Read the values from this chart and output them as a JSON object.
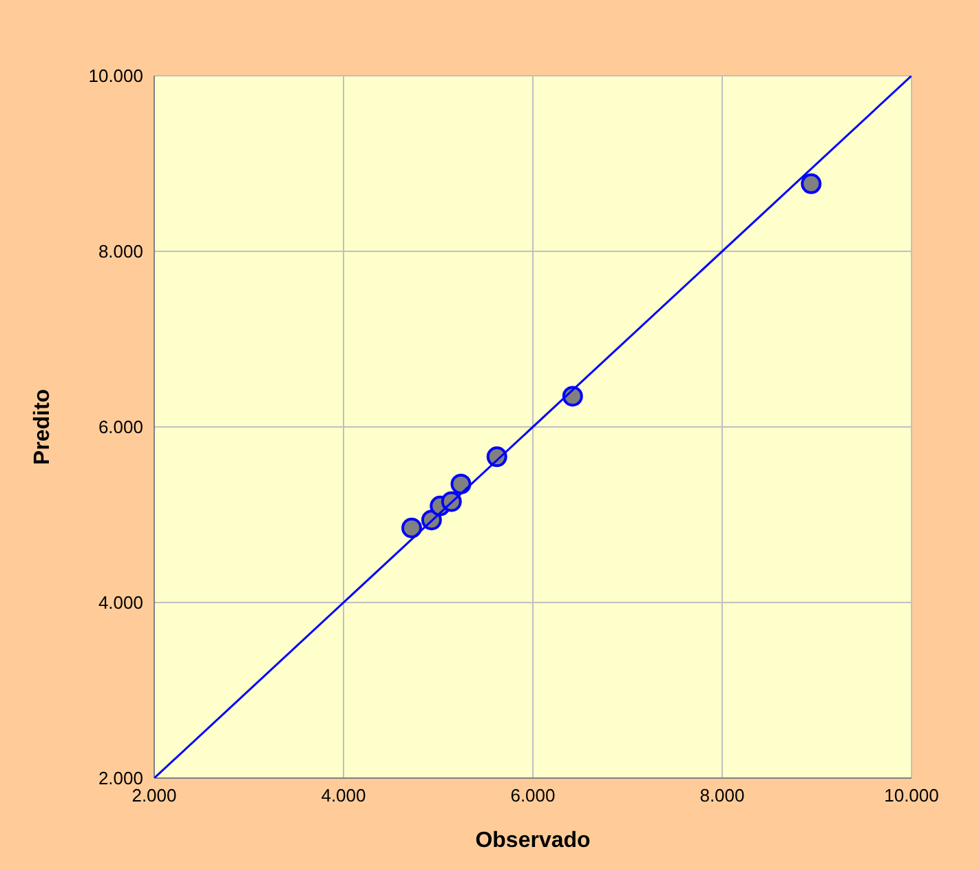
{
  "chart_data": {
    "type": "scatter",
    "xlabel": "Observado",
    "ylabel": "Predito",
    "series": [
      {
        "color": "#808080",
        "x": [
          4720,
          4930,
          5020,
          5140,
          5240,
          5620,
          6420,
          8940
        ],
        "values": [
          4850,
          4940,
          5100,
          5150,
          5350,
          5660,
          6350,
          8770
        ]
      },
      {
        "type": "line",
        "marker": "none",
        "color": "#0000ff",
        "x": [
          2000,
          10000
        ],
        "values": [
          2000,
          10000
        ]
      }
    ],
    "xlim": [
      2000,
      10000
    ],
    "ylim": [
      2000,
      10000
    ],
    "xticks": [
      {
        "value": 2000,
        "label": "2.000"
      },
      {
        "value": 4000,
        "label": "4.000"
      },
      {
        "value": 6000,
        "label": "6.000"
      },
      {
        "value": 8000,
        "label": "8.000"
      },
      {
        "value": 10000,
        "label": "10.000"
      }
    ],
    "yticks": [
      {
        "value": 2000,
        "label": "2.000"
      },
      {
        "value": 4000,
        "label": "4.000"
      },
      {
        "value": 6000,
        "label": "6.000"
      },
      {
        "value": 8000,
        "label": "8.000"
      },
      {
        "value": 10000,
        "label": "10.000"
      }
    ],
    "grid": true,
    "marker": "circle",
    "legend": false
  }
}
